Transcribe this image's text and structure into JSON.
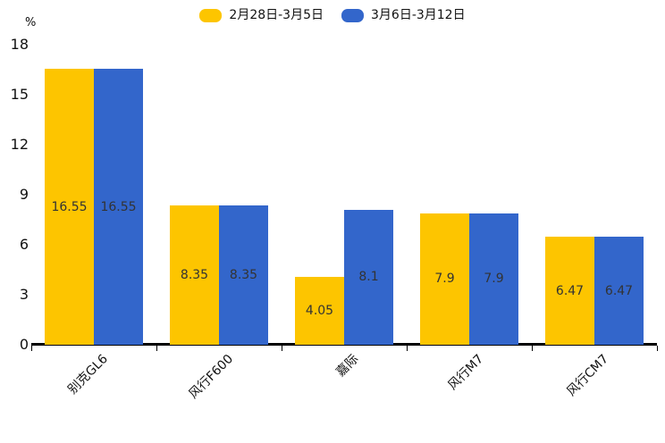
{
  "chart_data": {
    "type": "bar",
    "title": "",
    "unit_label": "%",
    "categories": [
      "别克GL6",
      "风行F600",
      "嘉际",
      "风行M7",
      "风行CM7"
    ],
    "series": [
      {
        "name": "2月28日-3月5日",
        "color": "#fdc500",
        "values": [
          16.55,
          8.35,
          4.05,
          7.9,
          6.47
        ]
      },
      {
        "name": "3月6日-3月12日",
        "color": "#3366cb",
        "values": [
          16.55,
          8.35,
          8.1,
          7.9,
          6.47
        ]
      }
    ],
    "yticks": [
      0,
      3,
      6,
      9,
      12,
      15,
      18
    ],
    "ylim": [
      0,
      18
    ],
    "legend_position": "top",
    "grid": false,
    "value_labels": "inside-middle",
    "xtick_rotation": 45,
    "axis_color": "#000000",
    "value_label_color": "#333333"
  }
}
